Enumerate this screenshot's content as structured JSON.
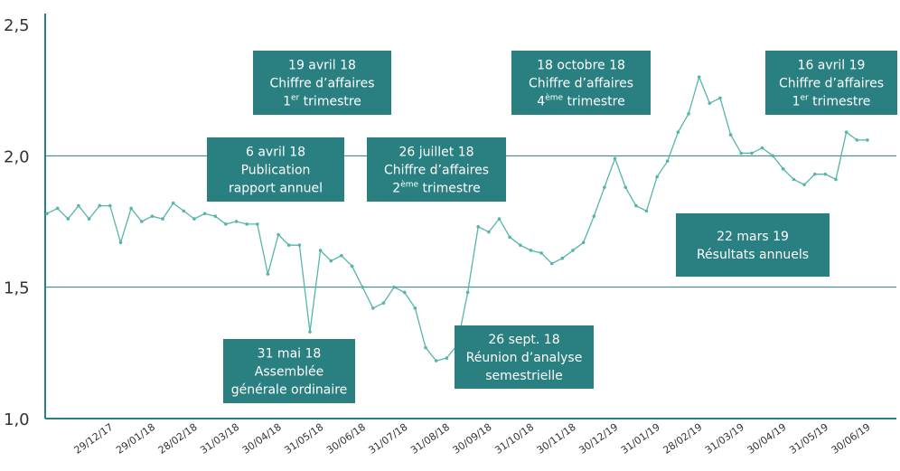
{
  "chart_data": {
    "type": "line",
    "categories": [
      null,
      null,
      null,
      null,
      null,
      null,
      "29/12/17",
      null,
      null,
      null,
      "29/01/18",
      null,
      null,
      null,
      "28/02/18",
      null,
      null,
      null,
      "31/03/18",
      null,
      null,
      null,
      "30/04/18",
      null,
      null,
      null,
      "31/05/18",
      null,
      null,
      null,
      "30/06/18",
      null,
      null,
      null,
      "31/07/18",
      null,
      null,
      null,
      "31/08/18",
      null,
      null,
      null,
      "30/09/18",
      null,
      null,
      null,
      "31/10/18",
      null,
      null,
      null,
      "30/11/18",
      null,
      null,
      null,
      "30/12/19",
      null,
      null,
      null,
      "31/01/19",
      null,
      null,
      null,
      "28/02/19",
      null,
      null,
      null,
      "31/03/19",
      null,
      null,
      null,
      "30/04/19",
      null,
      null,
      null,
      "31/05/19",
      null,
      null,
      null,
      "30/06/19"
    ],
    "series": [
      {
        "color": "#55b5ab",
        "values": [
          1.78,
          1.8,
          1.76,
          1.81,
          1.76,
          1.81,
          1.81,
          1.67,
          1.8,
          1.75,
          1.77,
          1.76,
          1.82,
          1.79,
          1.76,
          1.78,
          1.77,
          1.74,
          1.75,
          1.74,
          1.74,
          1.55,
          1.7,
          1.66,
          1.66,
          1.33,
          1.64,
          1.6,
          1.62,
          1.58,
          1.5,
          1.42,
          1.44,
          1.5,
          1.48,
          1.42,
          1.27,
          1.22,
          1.23,
          1.28,
          1.48,
          1.73,
          1.71,
          1.76,
          1.69,
          1.66,
          1.64,
          1.63,
          1.59,
          1.61,
          1.64,
          1.67,
          1.77,
          1.88,
          1.99,
          1.88,
          1.81,
          1.79,
          1.92,
          1.98,
          2.09,
          2.16,
          2.3,
          2.2,
          2.22,
          2.08,
          2.01,
          2.01,
          2.03,
          2.0,
          1.95,
          1.91,
          1.89,
          1.93,
          1.93,
          1.91,
          2.09,
          2.06,
          2.06
        ]
      }
    ],
    "ylim": [
      1.0,
      2.5
    ],
    "yticks": [
      {
        "value": 1.0,
        "label": "1,0"
      },
      {
        "value": 1.5,
        "label": "1,5"
      },
      {
        "value": 2.0,
        "label": "2,0"
      },
      {
        "value": 2.5,
        "label": "2,5"
      }
    ],
    "grid": true,
    "axis_color": "#2a7f80",
    "annotation_color": "#2a7f80",
    "annotations": [
      {
        "lines": [
          "19 avril 18",
          "Chiffre d’affaires",
          {
            "base": "1",
            "sup": "er",
            "rest": " trimestre"
          }
        ]
      },
      {
        "lines": [
          "6 avril 18",
          "Publication",
          "rapport annuel"
        ]
      },
      {
        "lines": [
          "26 juillet 18",
          "Chiffre d’affaires",
          {
            "base": "2",
            "sup": "ème",
            "rest": " trimestre"
          }
        ]
      },
      {
        "lines": [
          "18 octobre 18",
          "Chiffre d’affaires",
          {
            "base": "4",
            "sup": "ème",
            "rest": " trimestre"
          }
        ]
      },
      {
        "lines": [
          "16 avril 19",
          "Chiffre d’affaires",
          {
            "base": "1",
            "sup": "er",
            "rest": " trimestre"
          }
        ]
      },
      {
        "lines": [
          "22 mars 19",
          "Résultats annuels"
        ]
      },
      {
        "lines": [
          "31 mai 18",
          "Assemblée",
          "générale ordinaire"
        ]
      },
      {
        "lines": [
          "26 sept. 18",
          "Réunion d’analyse",
          "semestrielle"
        ]
      }
    ]
  }
}
